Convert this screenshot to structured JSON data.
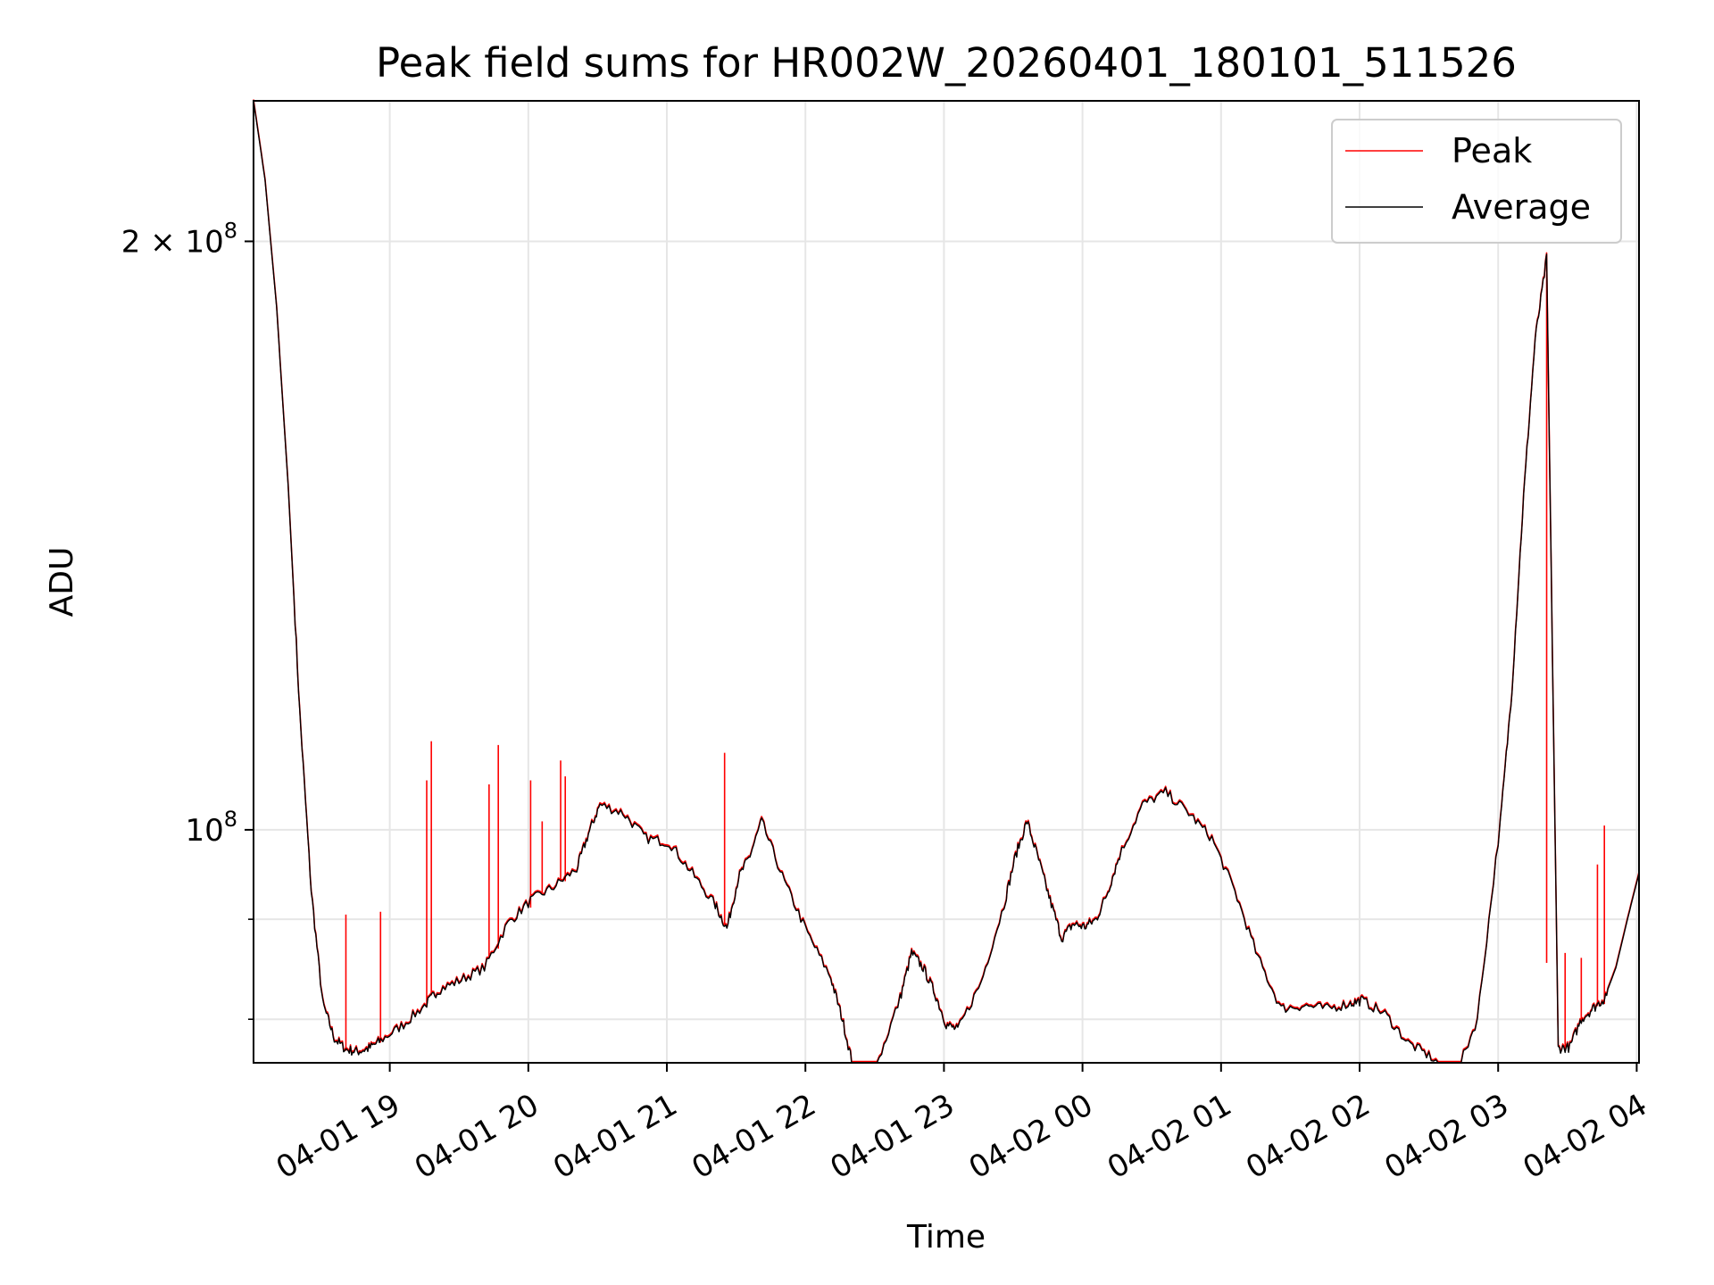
{
  "chart_data": {
    "type": "line",
    "title": "Peak field sums for HR002W_20260401_180101_511526",
    "xlabel": "Time",
    "ylabel": "ADU",
    "y_scale": "log",
    "ylim": [
      76000000,
      236000000
    ],
    "xlim": [
      "2026-04-01 18:01",
      "2026-04-02 04:01"
    ],
    "x_ticks": [
      {
        "value": "2026-04-01 19:00",
        "label": "04-01 19"
      },
      {
        "value": "2026-04-01 20:00",
        "label": "04-01 20"
      },
      {
        "value": "2026-04-01 21:00",
        "label": "04-01 21"
      },
      {
        "value": "2026-04-01 22:00",
        "label": "04-01 22"
      },
      {
        "value": "2026-04-01 23:00",
        "label": "04-01 23"
      },
      {
        "value": "2026-04-02 00:00",
        "label": "04-02 00"
      },
      {
        "value": "2026-04-02 01:00",
        "label": "04-02 01"
      },
      {
        "value": "2026-04-02 02:00",
        "label": "04-02 02"
      },
      {
        "value": "2026-04-02 03:00",
        "label": "04-02 03"
      },
      {
        "value": "2026-04-02 04:00",
        "label": "04-02 04"
      }
    ],
    "y_major_ticks": [
      {
        "value": 100000000,
        "base": "10",
        "exp": "8"
      },
      {
        "value": 200000000,
        "mantissa": "2",
        "base": "10",
        "exp": "8"
      }
    ],
    "y_minor_ticks": [
      80000000,
      90000000
    ],
    "grid": true,
    "legend": {
      "position": "top-right",
      "entries": [
        "Peak",
        "Average"
      ]
    },
    "series": [
      {
        "name": "Average",
        "color": "#000000",
        "x": [
          "2026-04-01 18:01",
          "2026-04-01 18:06",
          "2026-04-01 18:11",
          "2026-04-01 18:16",
          "2026-04-01 18:21",
          "2026-04-01 18:26",
          "2026-04-01 18:31",
          "2026-04-01 18:36",
          "2026-04-01 18:41",
          "2026-04-01 18:46",
          "2026-04-01 18:51",
          "2026-04-01 18:56",
          "2026-04-01 19:06",
          "2026-04-01 19:16",
          "2026-04-01 19:21",
          "2026-04-01 19:31",
          "2026-04-01 19:41",
          "2026-04-01 19:51",
          "2026-04-01 20:01",
          "2026-04-01 20:11",
          "2026-04-01 20:21",
          "2026-04-01 20:26",
          "2026-04-01 20:31",
          "2026-04-01 20:41",
          "2026-04-01 20:51",
          "2026-04-01 21:01",
          "2026-04-01 21:11",
          "2026-04-01 21:21",
          "2026-04-01 21:26",
          "2026-04-01 21:31",
          "2026-04-01 21:36",
          "2026-04-01 21:41",
          "2026-04-01 21:51",
          "2026-04-01 22:01",
          "2026-04-01 22:11",
          "2026-04-01 22:16",
          "2026-04-01 22:21",
          "2026-04-01 22:26",
          "2026-04-01 22:31",
          "2026-04-01 22:41",
          "2026-04-01 22:46",
          "2026-04-01 22:51",
          "2026-04-01 22:56",
          "2026-04-01 23:01",
          "2026-04-01 23:06",
          "2026-04-01 23:16",
          "2026-04-01 23:26",
          "2026-04-01 23:31",
          "2026-04-01 23:36",
          "2026-04-01 23:41",
          "2026-04-01 23:46",
          "2026-04-01 23:51",
          "2026-04-01 23:56",
          "2026-04-02 00:01",
          "2026-04-02 00:06",
          "2026-04-02 00:11",
          "2026-04-02 00:16",
          "2026-04-02 00:26",
          "2026-04-02 00:36",
          "2026-04-02 00:46",
          "2026-04-02 00:56",
          "2026-04-02 01:06",
          "2026-04-02 01:16",
          "2026-04-02 01:26",
          "2026-04-02 01:36",
          "2026-04-02 01:46",
          "2026-04-02 01:56",
          "2026-04-02 02:01",
          "2026-04-02 02:11",
          "2026-04-02 02:21",
          "2026-04-02 02:31",
          "2026-04-02 02:41",
          "2026-04-02 02:51",
          "2026-04-02 03:01",
          "2026-04-02 03:06",
          "2026-04-02 03:11",
          "2026-04-02 03:16",
          "2026-04-02 03:21",
          "2026-04-02 03:26",
          "2026-04-02 03:31",
          "2026-04-02 03:36",
          "2026-04-02 03:41",
          "2026-04-02 03:46",
          "2026-04-02 03:51",
          "2026-04-02 03:56",
          "2026-04-02 04:01"
        ],
        "values": [
          236000000,
          215000000,
          185000000,
          150000000,
          115000000,
          93000000,
          81500000,
          78200000,
          77200000,
          77000000,
          77300000,
          78000000,
          79500000,
          81500000,
          82800000,
          83800000,
          85000000,
          89500000,
          92000000,
          93500000,
          95500000,
          99500000,
          103000000,
          102000000,
          99000000,
          98500000,
          95000000,
          91500000,
          89000000,
          94500000,
          97000000,
          101000000,
          94000000,
          88500000,
          84000000,
          80000000,
          75300000,
          75200000,
          75800000,
          82000000,
          86500000,
          85000000,
          82500000,
          79500000,
          79000000,
          83500000,
          91500000,
          97000000,
          101000000,
          96500000,
          92000000,
          88000000,
          89500000,
          89200000,
          90000000,
          93000000,
          97000000,
          103000000,
          104500000,
          102000000,
          99000000,
          93000000,
          86000000,
          81000000,
          81300000,
          81000000,
          81500000,
          81800000,
          80500000,
          77800000,
          76500000,
          74500000,
          80000000,
          101000000,
          118000000,
          148000000,
          178000000,
          196000000,
          77300000,
          77400000,
          80000000,
          81000000,
          82000000,
          85000000,
          90000000,
          95000000
        ]
      },
      {
        "name": "Peak",
        "color": "#ff0000",
        "note_spikes": true,
        "spikes": [
          {
            "x": "2026-04-01 18:41",
            "value": 90500000
          },
          {
            "x": "2026-04-01 18:56",
            "value": 90800000
          },
          {
            "x": "2026-04-01 19:16",
            "value": 106000000
          },
          {
            "x": "2026-04-01 19:18",
            "value": 111000000
          },
          {
            "x": "2026-04-01 19:43",
            "value": 105500000
          },
          {
            "x": "2026-04-01 19:47",
            "value": 110500000
          },
          {
            "x": "2026-04-01 20:01",
            "value": 106000000
          },
          {
            "x": "2026-04-01 20:06",
            "value": 101000000
          },
          {
            "x": "2026-04-01 20:14",
            "value": 108500000
          },
          {
            "x": "2026-04-01 20:16",
            "value": 106500000
          },
          {
            "x": "2026-04-01 21:25",
            "value": 109500000
          },
          {
            "x": "2026-04-02 03:21",
            "value": 85500000
          },
          {
            "x": "2026-04-02 03:29",
            "value": 86500000
          },
          {
            "x": "2026-04-02 03:36",
            "value": 86000000
          },
          {
            "x": "2026-04-02 03:43",
            "value": 96000000
          },
          {
            "x": "2026-04-02 03:46",
            "value": 100500000
          }
        ]
      }
    ]
  }
}
